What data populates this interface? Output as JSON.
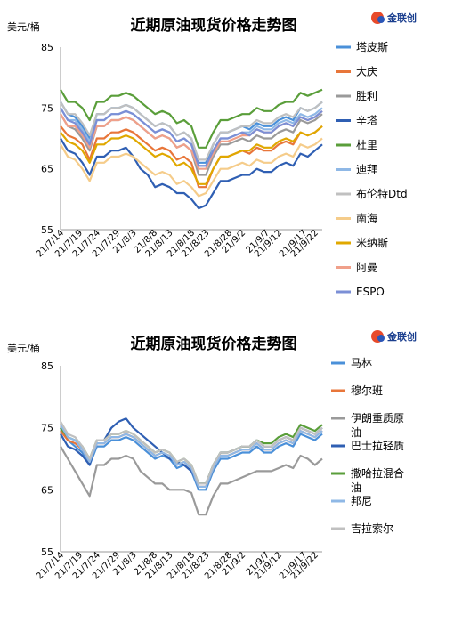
{
  "chart_data": [
    {
      "type": "line",
      "title": "近期原油现货价格走势图",
      "unit": "美元/桶",
      "logo": "金联创",
      "ylim": [
        55,
        85
      ],
      "yticks": [
        55,
        65,
        75,
        85
      ],
      "x_tick_labels": [
        "21/7/14",
        "21/7/19",
        "21/7/24",
        "21/7/29",
        "21/8/3",
        "21/8/8",
        "21/8/13",
        "21/8/18",
        "21/8/23",
        "21/8/28",
        "21/9/2",
        "21/9/7",
        "21/9/12",
        "21/9/17",
        "21/9/22"
      ],
      "x": [
        "21/7/14",
        "21/7/16",
        "21/7/18",
        "21/7/20",
        "21/7/22",
        "21/7/24",
        "21/7/26",
        "21/7/28",
        "21/7/30",
        "21/8/1",
        "21/8/3",
        "21/8/5",
        "21/8/7",
        "21/8/9",
        "21/8/11",
        "21/8/13",
        "21/8/15",
        "21/8/17",
        "21/8/19",
        "21/8/21",
        "21/8/23",
        "21/8/25",
        "21/8/27",
        "21/8/29",
        "21/8/31",
        "21/9/2",
        "21/9/4",
        "21/9/6",
        "21/9/8",
        "21/9/10",
        "21/9/12",
        "21/9/14",
        "21/9/16",
        "21/9/18",
        "21/9/20",
        "21/9/22",
        "21/9/24"
      ],
      "series": [
        {
          "name": "塔皮斯",
          "color": "#4a90d9",
          "values": [
            76,
            74,
            73.5,
            72,
            70,
            74,
            74,
            75,
            75,
            75.5,
            75,
            74,
            73,
            72,
            72.5,
            72,
            70.5,
            71,
            70,
            66,
            66,
            69,
            71,
            71,
            71.5,
            72,
            71.5,
            72.5,
            72,
            72,
            73,
            73.5,
            73,
            75,
            74.5,
            75,
            76
          ]
        },
        {
          "name": "大庆",
          "color": "#e8763a",
          "values": [
            72,
            70.5,
            70,
            69,
            66.5,
            70,
            70,
            71,
            71,
            71.5,
            71,
            70,
            69,
            68,
            68.5,
            68,
            66.5,
            67,
            66,
            62,
            62,
            65,
            67,
            67,
            67.5,
            68,
            67.5,
            68.5,
            68,
            68,
            69,
            69.5,
            69,
            71,
            70.5,
            71,
            72
          ]
        },
        {
          "name": "胜利",
          "color": "#9a9a9a",
          "values": [
            74,
            72,
            71.5,
            70,
            68,
            72,
            72,
            73,
            73,
            73.5,
            73,
            72,
            71,
            70,
            70.5,
            70,
            68.5,
            69,
            68,
            64,
            64,
            67,
            69,
            69,
            69.5,
            70,
            69.5,
            70.5,
            70,
            70,
            71,
            71.5,
            71,
            73,
            72.5,
            73,
            74
          ]
        },
        {
          "name": "辛塔",
          "color": "#2f5fb3",
          "values": [
            70,
            68,
            67.5,
            66,
            64,
            67,
            67,
            68,
            68,
            68.5,
            67,
            65,
            64,
            62,
            62.5,
            62,
            61,
            61,
            60,
            58.5,
            59,
            61,
            63,
            63,
            63.5,
            64,
            64,
            65,
            64.5,
            64.5,
            65.5,
            66,
            65.5,
            67.5,
            67,
            68,
            69
          ]
        },
        {
          "name": "杜里",
          "color": "#5a9e3a",
          "values": [
            78,
            76,
            76,
            75,
            73,
            76,
            76,
            77,
            77,
            77.5,
            77,
            76,
            75,
            74,
            74.5,
            74,
            72.5,
            73,
            72,
            68.5,
            68.5,
            71,
            73,
            73,
            73.5,
            74,
            74,
            75,
            74.5,
            74.5,
            75.5,
            76,
            76,
            77.5,
            77,
            77.5,
            78
          ]
        },
        {
          "name": "迪拜",
          "color": "#8fb8e6",
          "values": [
            75,
            73,
            73,
            71.5,
            69.5,
            73,
            73,
            74,
            74,
            74.5,
            74,
            73,
            72,
            71,
            71.5,
            71,
            69.5,
            70,
            69,
            65.5,
            65.5,
            68,
            70,
            70,
            70.5,
            71,
            71,
            72,
            71.5,
            71.5,
            72.5,
            73,
            72.5,
            74,
            73.5,
            74,
            75
          ]
        },
        {
          "name": "布伦特Dtd",
          "color": "#c0c0c0",
          "values": [
            76,
            74,
            74,
            72.5,
            70.5,
            74,
            74,
            75,
            75,
            75.5,
            75,
            74,
            73,
            72,
            72.5,
            72,
            70.5,
            71,
            70,
            66.5,
            66.5,
            69,
            71,
            71,
            71.5,
            72,
            72,
            73,
            72.5,
            72.5,
            73.5,
            74,
            73.5,
            75,
            74.5,
            75,
            76
          ]
        },
        {
          "name": "南海",
          "color": "#f5cc8a",
          "values": [
            69,
            67,
            66.5,
            65,
            63,
            66,
            66,
            67,
            67,
            67.5,
            67,
            66,
            65,
            64,
            64.5,
            64,
            62.5,
            63,
            62,
            60.5,
            61,
            63,
            65,
            65,
            65.5,
            66,
            65.5,
            66.5,
            66,
            66,
            67,
            67.5,
            67,
            69,
            68.5,
            69,
            70
          ]
        },
        {
          "name": "米纳斯",
          "color": "#e0a800",
          "values": [
            71,
            69.5,
            69,
            68,
            66,
            69,
            69,
            70,
            70,
            70.5,
            70,
            69,
            68,
            67,
            67.5,
            67,
            65.5,
            66,
            65,
            62.5,
            62.5,
            65,
            67,
            67,
            67.5,
            68,
            68,
            69,
            68.5,
            68.5,
            69.5,
            70,
            69.5,
            71,
            70.5,
            71,
            72
          ]
        },
        {
          "name": "阿曼",
          "color": "#f0a08a",
          "values": [
            74,
            72,
            72,
            70.5,
            68.5,
            72,
            72,
            73,
            73,
            73.5,
            73,
            72,
            71,
            70,
            70.5,
            70,
            68.5,
            69,
            68,
            65,
            65,
            67.5,
            69.5,
            69.5,
            70,
            70.5,
            70.5,
            71.5,
            71,
            71,
            72,
            72.5,
            72,
            73.5,
            73,
            73.5,
            74.5
          ]
        },
        {
          "name": "ESPO",
          "color": "#7b8fd6",
          "values": [
            75,
            73,
            72.5,
            71,
            69,
            73,
            73,
            74,
            74,
            74.5,
            74,
            73,
            72,
            71,
            71.5,
            71,
            69.5,
            70,
            69,
            65.5,
            65.5,
            68,
            70,
            70,
            70.5,
            71,
            70.5,
            71.5,
            71,
            71,
            72,
            72.5,
            72,
            73.5,
            73,
            73.5,
            74.5
          ]
        }
      ]
    },
    {
      "type": "line",
      "title": "近期原油现货价格走势图",
      "unit": "美元/桶",
      "logo": "金联创",
      "ylim": [
        55,
        85
      ],
      "yticks": [
        55,
        65,
        75,
        85
      ],
      "x_tick_labels": [
        "21/7/14",
        "21/7/19",
        "21/7/24",
        "21/7/29",
        "21/8/3",
        "21/8/8",
        "21/8/13",
        "21/8/18",
        "21/8/23",
        "21/8/28",
        "21/9/2",
        "21/9/7",
        "21/9/12",
        "21/9/17",
        "21/9/22"
      ],
      "x": [
        "21/7/14",
        "21/7/16",
        "21/7/18",
        "21/7/20",
        "21/7/22",
        "21/7/24",
        "21/7/26",
        "21/7/28",
        "21/7/30",
        "21/8/1",
        "21/8/3",
        "21/8/5",
        "21/8/7",
        "21/8/9",
        "21/8/11",
        "21/8/13",
        "21/8/15",
        "21/8/17",
        "21/8/19",
        "21/8/21",
        "21/8/23",
        "21/8/25",
        "21/8/27",
        "21/8/29",
        "21/8/31",
        "21/9/2",
        "21/9/4",
        "21/9/6",
        "21/9/8",
        "21/9/10",
        "21/9/12",
        "21/9/14",
        "21/9/16",
        "21/9/18",
        "21/9/20",
        "21/9/22",
        "21/9/24"
      ],
      "series": [
        {
          "name": "马林",
          "color": "#4a90d9",
          "values": [
            75,
            73,
            72,
            71,
            69,
            72,
            72,
            73,
            73,
            73.5,
            73,
            72,
            71,
            70,
            70.5,
            70,
            68.5,
            69,
            68,
            65,
            65,
            68,
            70,
            70,
            70.5,
            71,
            71,
            72,
            71,
            71,
            72,
            72.5,
            72,
            74,
            73.5,
            73,
            74
          ]
        },
        {
          "name": "穆尔班",
          "color": "#e8763a",
          "values": [
            74.5,
            73,
            72.5,
            71.5,
            69.5,
            72.5,
            72.5,
            73.5,
            73.5,
            74,
            73.5,
            72.5,
            71.5,
            70.5,
            71,
            70.5,
            69,
            69.5,
            68.5,
            65.5,
            65.5,
            68.5,
            70.5,
            70.5,
            71,
            71.5,
            71.5,
            72.5,
            71.5,
            71.5,
            72.5,
            73,
            72.5,
            74.5,
            74,
            73.5,
            74.5
          ]
        },
        {
          "name": "伊朗重质原油",
          "color": "#9a9a9a",
          "values": [
            72,
            70,
            68,
            66,
            64,
            69,
            69,
            70,
            70,
            70.5,
            70,
            68,
            67,
            66,
            66,
            65,
            65,
            65,
            64.5,
            61,
            61,
            64,
            66,
            66,
            66.5,
            67,
            67.5,
            68,
            68,
            68,
            68.5,
            69,
            68.5,
            70.5,
            70,
            69,
            70
          ]
        },
        {
          "name": "巴士拉轻质",
          "color": "#2f5fb3",
          "values": [
            74,
            72,
            71.5,
            70.5,
            69,
            73,
            73,
            75,
            76,
            76.5,
            75,
            74,
            73,
            72,
            71,
            70,
            69.5,
            69,
            68,
            66,
            66,
            69,
            71,
            71,
            71.5,
            72,
            72,
            73,
            72,
            72,
            73,
            73.5,
            73,
            75,
            74.5,
            74,
            75
          ]
        },
        {
          "name": "撒哈拉混合油",
          "color": "#5a9e3a",
          "values": [
            75,
            73.5,
            73,
            72,
            70,
            73,
            73,
            74,
            74,
            74.5,
            74,
            73,
            72,
            71,
            71.5,
            71,
            69.5,
            70,
            69,
            66,
            66,
            69,
            71,
            71,
            71.5,
            72,
            72,
            73,
            72.5,
            72.5,
            73.5,
            74,
            73.5,
            75.5,
            75,
            74.5,
            75.5
          ]
        },
        {
          "name": "邦尼",
          "color": "#8fb8e6",
          "values": [
            75.5,
            73.5,
            73,
            71.5,
            69.5,
            72.5,
            72.5,
            73.5,
            73.5,
            74,
            73.5,
            72.5,
            71.5,
            70.5,
            71,
            70.5,
            69,
            69.5,
            68.5,
            65.5,
            65.5,
            68.5,
            70.5,
            70.5,
            71,
            71.5,
            71.5,
            72.5,
            71.5,
            71.5,
            72.5,
            73,
            72.5,
            74.5,
            74,
            73.5,
            74.5
          ]
        },
        {
          "name": "吉拉索尔",
          "color": "#c0c0c0",
          "values": [
            76,
            74,
            73.5,
            72,
            70,
            73,
            73,
            74,
            74,
            74.5,
            74,
            73,
            72,
            71,
            71.5,
            71,
            69.5,
            70,
            69,
            66,
            66,
            69,
            71,
            71,
            71.5,
            72,
            72,
            73,
            72,
            72,
            73,
            73.5,
            73,
            75,
            74.5,
            74,
            75
          ]
        }
      ]
    }
  ]
}
